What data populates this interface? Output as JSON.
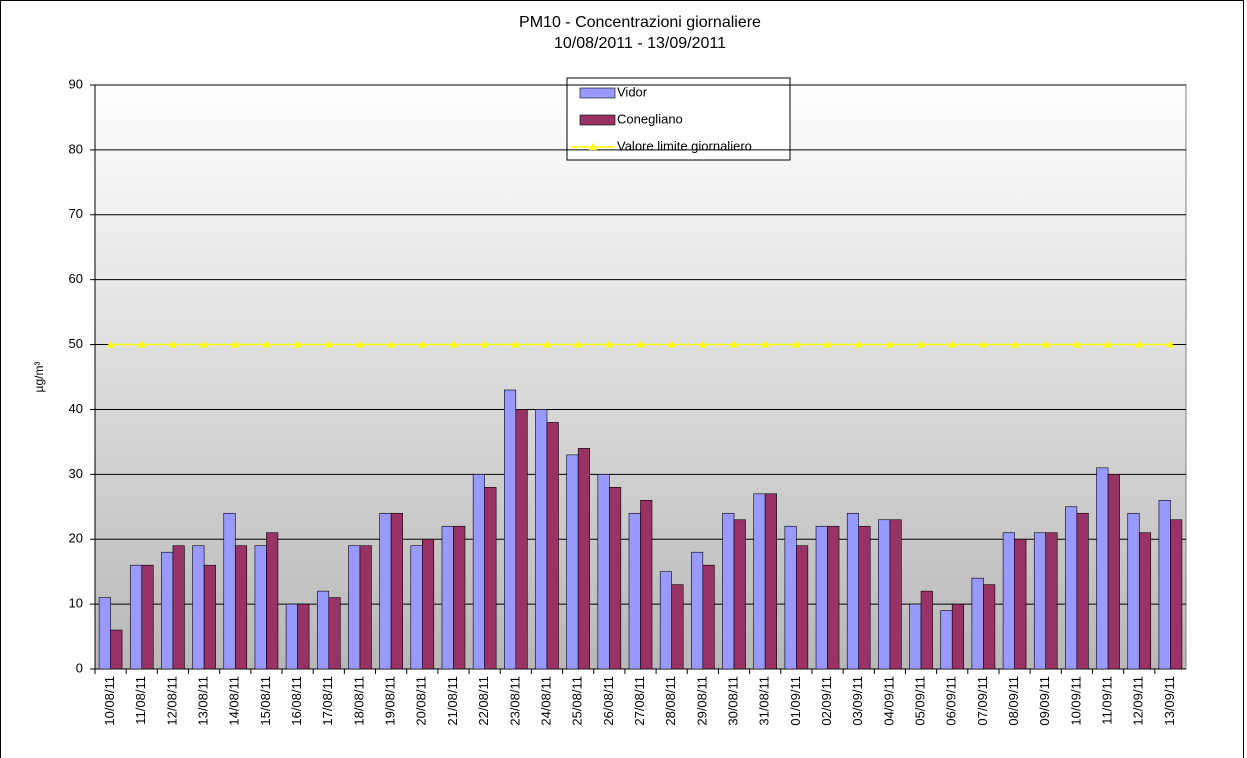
{
  "chart_data": {
    "type": "bar",
    "title": "PM10 - Concentrazioni giornaliere",
    "subtitle": "10/08/2011 - 13/09/2011",
    "y_label": "µg/m³",
    "categories": [
      "10/08/11",
      "11/08/11",
      "12/08/11",
      "13/08/11",
      "14/08/11",
      "15/08/11",
      "16/08/11",
      "17/08/11",
      "18/08/11",
      "19/08/11",
      "20/08/11",
      "21/08/11",
      "22/08/11",
      "23/08/11",
      "24/08/11",
      "25/08/11",
      "26/08/11",
      "27/08/11",
      "28/08/11",
      "29/08/11",
      "30/08/11",
      "31/08/11",
      "01/09/11",
      "02/09/11",
      "03/09/11",
      "04/09/11",
      "05/09/11",
      "06/09/11",
      "07/09/11",
      "08/09/11",
      "09/09/11",
      "10/09/11",
      "11/09/11",
      "12/09/11",
      "13/09/11"
    ],
    "series": [
      {
        "name": "Vidor",
        "color": "#9999ff",
        "values": [
          11,
          16,
          18,
          19,
          24,
          19,
          10,
          12,
          19,
          24,
          19,
          22,
          30,
          43,
          40,
          33,
          30,
          24,
          15,
          18,
          24,
          27,
          22,
          22,
          24,
          23,
          10,
          9,
          14,
          21,
          21,
          25,
          31,
          24,
          26
        ]
      },
      {
        "name": "Conegliano",
        "color": "#993366",
        "values": [
          6,
          16,
          19,
          16,
          19,
          21,
          10,
          11,
          19,
          24,
          20,
          22,
          28,
          40,
          38,
          34,
          28,
          26,
          13,
          16,
          23,
          27,
          19,
          22,
          22,
          23,
          12,
          10,
          13,
          20,
          21,
          24,
          30,
          21,
          23
        ]
      },
      {
        "name": "Valore limite giornaliero",
        "color": "#ffff00",
        "type": "line",
        "values": [
          50,
          50,
          50,
          50,
          50,
          50,
          50,
          50,
          50,
          50,
          50,
          50,
          50,
          50,
          50,
          50,
          50,
          50,
          50,
          50,
          50,
          50,
          50,
          50,
          50,
          50,
          50,
          50,
          50,
          50,
          50,
          50,
          50,
          50,
          50
        ]
      }
    ],
    "ylim": [
      0,
      90
    ],
    "yticks": [
      0,
      10,
      20,
      30,
      40,
      50,
      60,
      70,
      80,
      90
    ],
    "grid": true
  }
}
